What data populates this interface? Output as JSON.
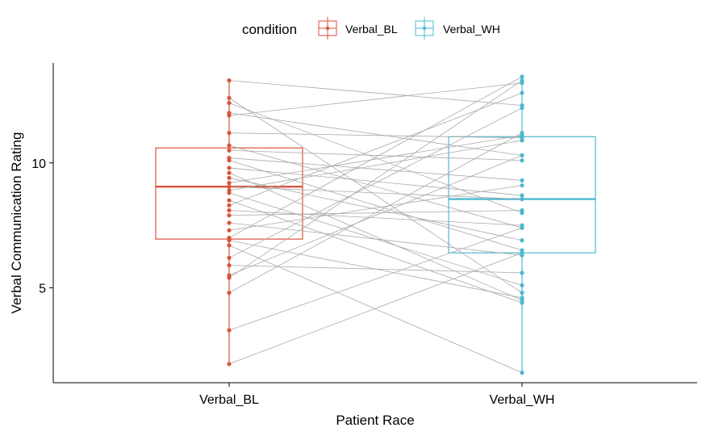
{
  "chart_data": {
    "type": "boxplot-paired",
    "categories": [
      "Verbal_BL",
      "Verbal_WH"
    ],
    "xlabel": "Patient Race",
    "ylabel": "Verbal Communication Rating",
    "ylim": [
      1.2,
      14.0
    ],
    "yticks": [
      5,
      10
    ],
    "grid": false,
    "legend": {
      "title": "condition",
      "position": "top",
      "entries": [
        {
          "label": "Verbal_BL",
          "color": "#d9533a"
        },
        {
          "label": "Verbal_WH",
          "color": "#4db8d0"
        }
      ]
    },
    "boxes": [
      {
        "category": "Verbal_BL",
        "q1": 6.95,
        "median": 9.05,
        "q3": 10.6,
        "min": 1.95,
        "max": 13.3,
        "color": "#d9533a"
      },
      {
        "category": "Verbal_WH",
        "q1": 6.4,
        "median": 8.55,
        "q3": 11.05,
        "min": 1.6,
        "max": 13.45,
        "color": "#4db8d0"
      }
    ],
    "pairs": [
      [
        13.3,
        12.3
      ],
      [
        12.6,
        4.8
      ],
      [
        12.4,
        8.0
      ],
      [
        12.0,
        10.3
      ],
      [
        11.9,
        13.2
      ],
      [
        11.2,
        11.0
      ],
      [
        10.7,
        7.4
      ],
      [
        10.5,
        10.1
      ],
      [
        10.2,
        9.3
      ],
      [
        10.1,
        6.5
      ],
      [
        9.8,
        8.7
      ],
      [
        9.6,
        4.5
      ],
      [
        9.4,
        6.9
      ],
      [
        9.2,
        11.1
      ],
      [
        9.05,
        8.55
      ],
      [
        8.9,
        10.9
      ],
      [
        8.8,
        5.1
      ],
      [
        8.5,
        4.4
      ],
      [
        8.3,
        12.8
      ],
      [
        8.1,
        7.5
      ],
      [
        7.9,
        8.1
      ],
      [
        7.6,
        6.3
      ],
      [
        7.3,
        9.1
      ],
      [
        7.0,
        13.45
      ],
      [
        6.9,
        4.6
      ],
      [
        6.7,
        1.6
      ],
      [
        6.2,
        12.2
      ],
      [
        5.9,
        5.6
      ],
      [
        5.5,
        10.3
      ],
      [
        5.4,
        13.3
      ],
      [
        4.8,
        11.2
      ],
      [
        3.3,
        7.4
      ],
      [
        1.95,
        6.4
      ]
    ]
  }
}
